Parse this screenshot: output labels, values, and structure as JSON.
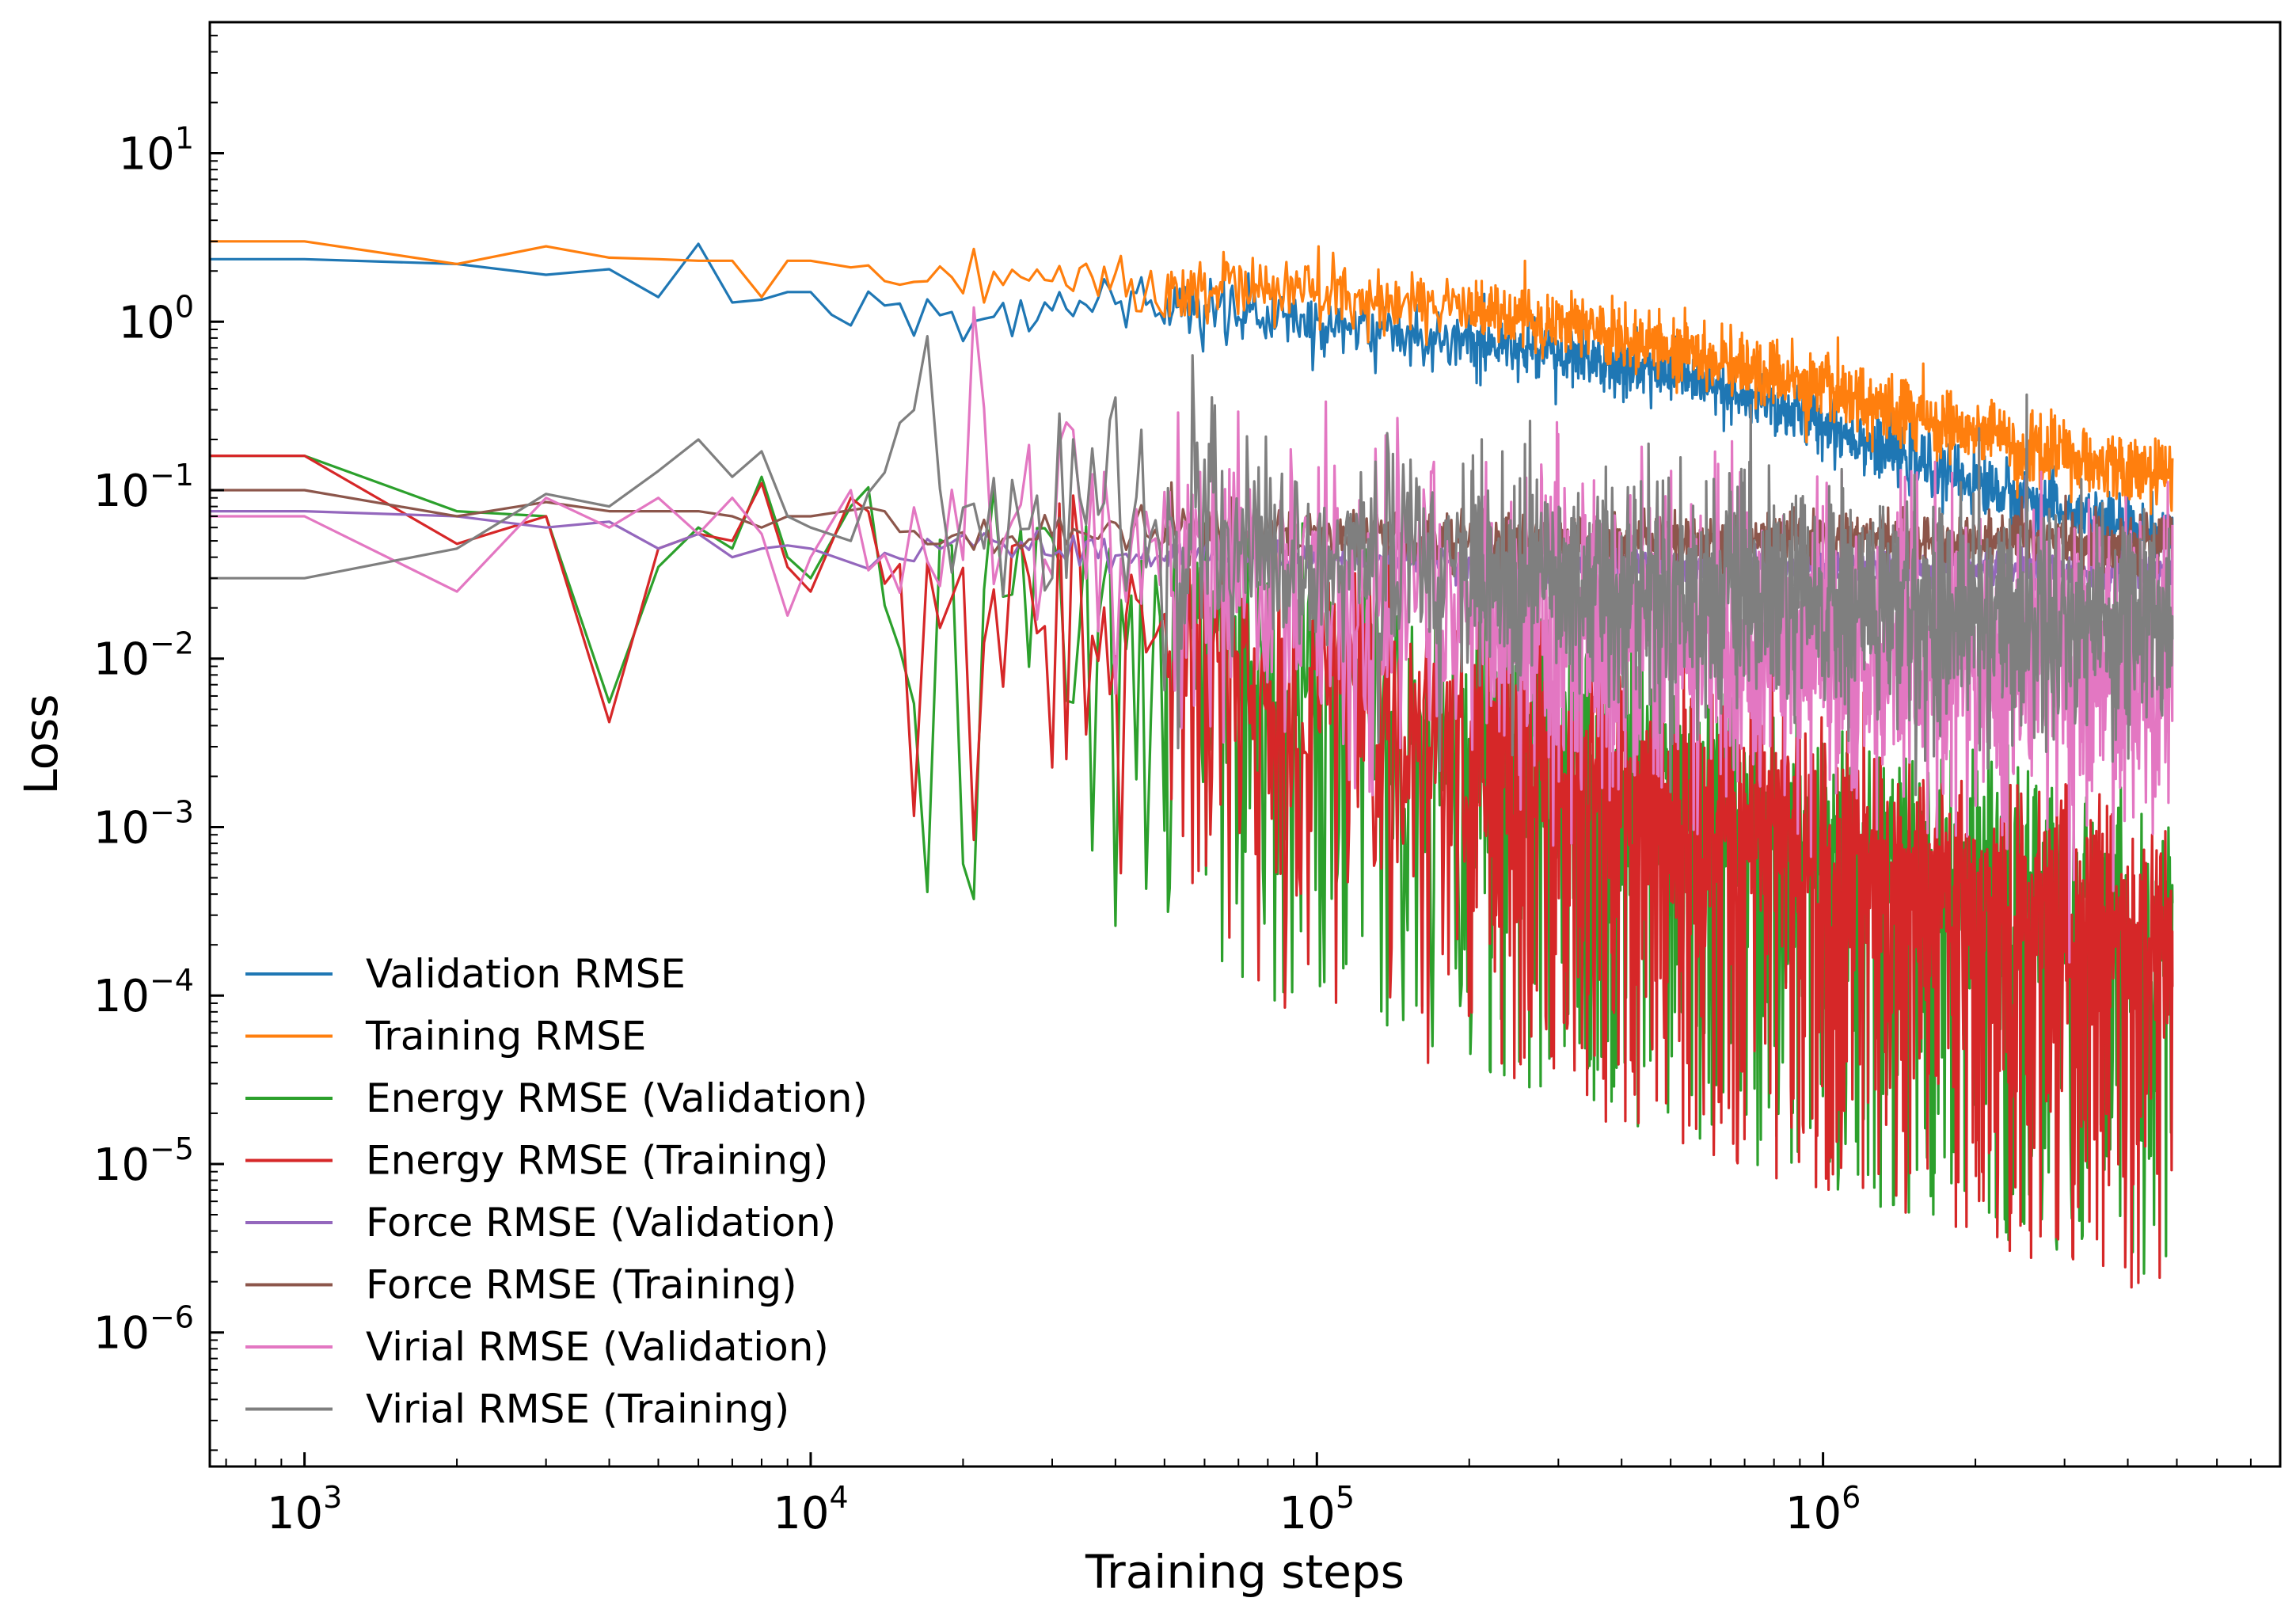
{
  "chart_data": {
    "type": "line",
    "title": "",
    "xlabel": "Training steps",
    "ylabel": "Loss",
    "xscale": "log",
    "yscale": "log",
    "xlim": [
      650,
      8000000
    ],
    "ylim": [
      1.6e-07,
      60
    ],
    "x_ticks": [
      {
        "value": 1000,
        "base": "10",
        "exp": "3"
      },
      {
        "value": 10000,
        "base": "10",
        "exp": "4"
      },
      {
        "value": 100000,
        "base": "10",
        "exp": "5"
      },
      {
        "value": 1000000,
        "base": "10",
        "exp": "6"
      }
    ],
    "y_ticks": [
      {
        "value": 10,
        "base": "10",
        "exp": "1"
      },
      {
        "value": 1,
        "base": "10",
        "exp": "0"
      },
      {
        "value": 0.1,
        "base": "10",
        "exp": "−1"
      },
      {
        "value": 0.01,
        "base": "10",
        "exp": "−2"
      },
      {
        "value": 0.001,
        "base": "10",
        "exp": "−3"
      },
      {
        "value": 0.0001,
        "base": "10",
        "exp": "−4"
      },
      {
        "value": 1e-05,
        "base": "10",
        "exp": "−5"
      },
      {
        "value": 1e-06,
        "base": "10",
        "exp": "−6"
      }
    ],
    "grid": false,
    "legend_position": "lower-left",
    "series": [
      {
        "name": "Validation RMSE",
        "color": "#1f77b4",
        "x": [
          650,
          1000,
          2000,
          3000,
          4000,
          5000,
          6000,
          7000,
          8000,
          9000,
          10000,
          11000,
          12000,
          13000,
          15000,
          17000,
          20000,
          25000,
          30000,
          40000,
          50000,
          70000,
          100000,
          200000,
          300000,
          500000,
          700000,
          1000000,
          1500000,
          2000000,
          3000000,
          4000000,
          5000000
        ],
        "values": [
          2.35,
          2.35,
          2.2,
          1.9,
          2.05,
          1.4,
          2.9,
          1.3,
          1.35,
          1.5,
          1.5,
          1.1,
          0.95,
          1.5,
          1.3,
          1.4,
          1.1,
          1.15,
          1.2,
          1.3,
          1.25,
          1.1,
          1.0,
          0.78,
          0.62,
          0.48,
          0.35,
          0.25,
          0.15,
          0.11,
          0.075,
          0.06,
          0.055
        ],
        "noise": 0.09
      },
      {
        "name": "Training RMSE",
        "color": "#ff7f0e",
        "x": [
          650,
          1000,
          2000,
          3000,
          4000,
          5000,
          6000,
          7000,
          8000,
          9000,
          10000,
          12000,
          15000,
          20000,
          30000,
          40000,
          50000,
          70000,
          100000,
          200000,
          300000,
          500000,
          700000,
          1000000,
          1500000,
          2000000,
          3000000,
          4000000,
          5000000
        ],
        "values": [
          3.0,
          3.0,
          2.2,
          2.8,
          2.4,
          2.35,
          2.3,
          2.3,
          1.4,
          2.3,
          2.3,
          2.1,
          1.9,
          1.8,
          1.75,
          1.7,
          1.6,
          1.55,
          1.45,
          1.2,
          0.95,
          0.7,
          0.52,
          0.4,
          0.28,
          0.22,
          0.16,
          0.13,
          0.12
        ],
        "noise": 0.1
      },
      {
        "name": "Energy RMSE (Validation)",
        "color": "#2ca02c",
        "x": [
          650,
          1000,
          2000,
          3000,
          4000,
          5000,
          6000,
          7000,
          8000,
          9000,
          10000,
          12000,
          15000,
          20000,
          30000,
          50000,
          100000,
          200000,
          500000,
          1000000,
          2000000,
          5000000
        ],
        "values": [
          0.16,
          0.16,
          0.075,
          0.07,
          0.0055,
          0.035,
          0.06,
          0.045,
          0.12,
          0.04,
          0.03,
          0.08,
          0.06,
          0.05,
          0.04,
          0.025,
          0.012,
          0.0055,
          0.0022,
          0.0011,
          0.0006,
          0.0003
        ],
        "noise": 1.2
      },
      {
        "name": "Energy RMSE (Training)",
        "color": "#d62728",
        "x": [
          650,
          1000,
          2000,
          3000,
          4000,
          5000,
          6000,
          7000,
          8000,
          9000,
          10000,
          12000,
          15000,
          20000,
          30000,
          50000,
          100000,
          200000,
          500000,
          1000000,
          2000000,
          5000000
        ],
        "values": [
          0.16,
          0.16,
          0.048,
          0.07,
          0.0042,
          0.045,
          0.055,
          0.05,
          0.11,
          0.035,
          0.025,
          0.09,
          0.05,
          0.045,
          0.035,
          0.022,
          0.011,
          0.005,
          0.002,
          0.001,
          0.0005,
          0.00025
        ],
        "noise": 1.25
      },
      {
        "name": "Force RMSE (Validation)",
        "color": "#9467bd",
        "x": [
          650,
          1000,
          2000,
          3000,
          4000,
          5000,
          6000,
          7000,
          8000,
          9000,
          10000,
          15000,
          20000,
          30000,
          50000,
          100000,
          200000,
          500000,
          1000000,
          2000000,
          5000000
        ],
        "values": [
          0.075,
          0.075,
          0.07,
          0.06,
          0.065,
          0.045,
          0.055,
          0.04,
          0.045,
          0.047,
          0.045,
          0.04,
          0.05,
          0.045,
          0.042,
          0.04,
          0.038,
          0.036,
          0.035,
          0.034,
          0.033
        ],
        "noise": 0.05
      },
      {
        "name": "Force RMSE (Training)",
        "color": "#8c564b",
        "x": [
          650,
          1000,
          2000,
          3000,
          4000,
          5000,
          6000,
          7000,
          8000,
          9000,
          10000,
          15000,
          20000,
          30000,
          50000,
          100000,
          200000,
          500000,
          1000000,
          2000000,
          5000000
        ],
        "values": [
          0.1,
          0.1,
          0.07,
          0.085,
          0.075,
          0.075,
          0.075,
          0.07,
          0.06,
          0.07,
          0.07,
          0.06,
          0.055,
          0.06,
          0.06,
          0.055,
          0.05,
          0.05,
          0.05,
          0.05,
          0.05
        ],
        "noise": 0.08
      },
      {
        "name": "Virial RMSE (Validation)",
        "color": "#e377c2",
        "x": [
          650,
          1000,
          2000,
          3000,
          4000,
          5000,
          6000,
          7000,
          8000,
          9000,
          10000,
          12000,
          15000,
          18000,
          20000,
          25000,
          30000,
          50000,
          100000,
          200000,
          500000,
          1000000,
          2000000,
          5000000
        ],
        "values": [
          0.07,
          0.07,
          0.025,
          0.09,
          0.06,
          0.09,
          0.055,
          0.09,
          0.055,
          0.018,
          0.04,
          0.1,
          0.06,
          0.25,
          0.06,
          0.11,
          0.05,
          0.05,
          0.03,
          0.02,
          0.013,
          0.01,
          0.009,
          0.008
        ],
        "noise": 0.45
      },
      {
        "name": "Virial RMSE (Training)",
        "color": "#7f7f7f",
        "x": [
          650,
          1000,
          2000,
          3000,
          4000,
          5000,
          6000,
          7000,
          8000,
          9000,
          10000,
          12000,
          15000,
          20000,
          30000,
          50000,
          100000,
          200000,
          500000,
          1000000,
          2000000,
          5000000
        ],
        "values": [
          0.03,
          0.03,
          0.045,
          0.095,
          0.08,
          0.13,
          0.2,
          0.12,
          0.17,
          0.07,
          0.06,
          0.05,
          0.12,
          0.07,
          0.08,
          0.05,
          0.04,
          0.03,
          0.025,
          0.02,
          0.018,
          0.016
        ],
        "noise": 0.35
      }
    ]
  }
}
